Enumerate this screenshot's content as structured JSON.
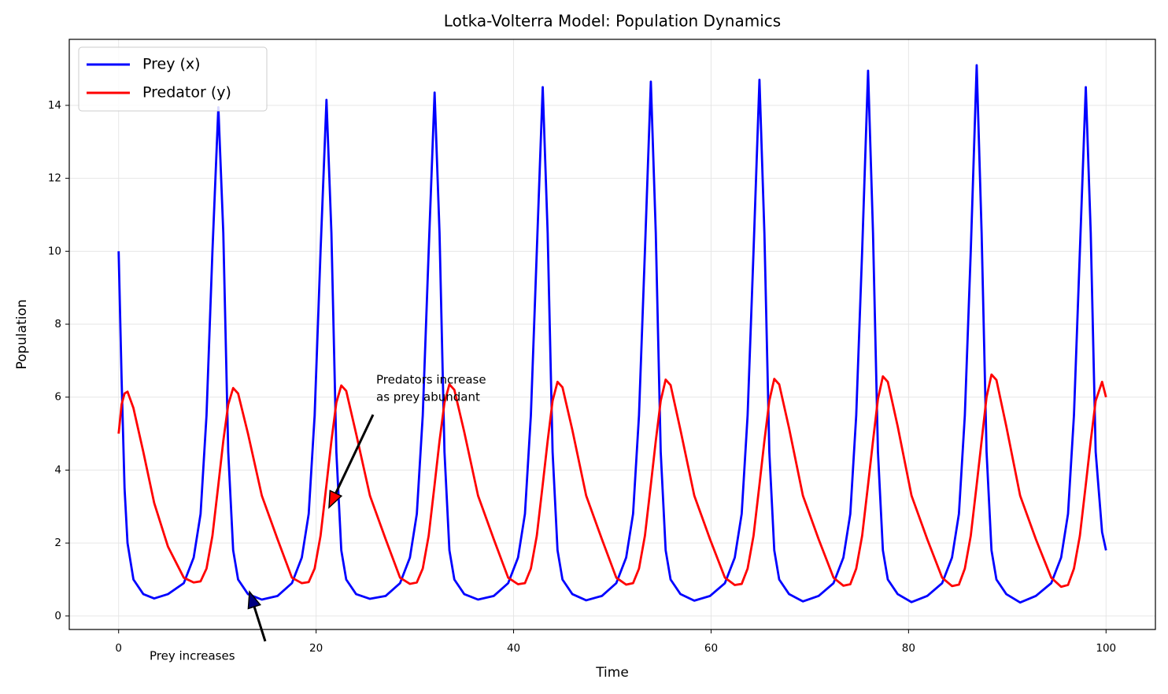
{
  "chart_data": {
    "type": "line",
    "title": "Lotka-Volterra Model: Population Dynamics",
    "x_label": "Time",
    "y_label": "Population",
    "x": [
      0,
      0.3,
      0.6,
      0.9,
      1.5,
      2.5,
      3.6,
      5,
      6.6,
      7.6,
      8.3,
      8.9,
      9.5,
      10.1,
      10.6,
      11.1,
      11.6,
      12.1,
      13.1,
      14.5,
      16.1,
      17.55,
      18.55,
      19.25,
      19.85,
      20.45,
      21.05,
      21.55,
      22.05,
      22.55,
      23.05,
      24.05,
      25.45,
      27.05,
      28.5,
      29.5,
      30.2,
      30.8,
      31.4,
      32.0,
      32.5,
      33.0,
      33.5,
      34.0,
      35.0,
      36.4,
      38.0,
      39.45,
      40.45,
      41.15,
      41.75,
      42.35,
      42.95,
      43.45,
      43.95,
      44.45,
      44.95,
      45.95,
      47.35,
      48.95,
      50.4,
      51.4,
      52.1,
      52.7,
      53.3,
      53.9,
      54.4,
      54.9,
      55.4,
      55.9,
      56.9,
      58.3,
      59.9,
      61.4,
      62.4,
      63.1,
      63.7,
      64.3,
      64.9,
      65.4,
      65.9,
      66.4,
      66.9,
      67.9,
      69.3,
      70.9,
      72.4,
      73.4,
      74.1,
      74.7,
      75.3,
      75.9,
      76.4,
      76.9,
      77.4,
      77.9,
      78.9,
      80.3,
      81.9,
      83.4,
      84.4,
      85.1,
      85.7,
      86.3,
      86.9,
      87.4,
      87.9,
      88.4,
      88.9,
      89.9,
      91.3,
      92.9,
      94.45,
      95.45,
      96.15,
      96.75,
      97.35,
      97.95,
      98.45,
      98.95,
      99.6,
      100
    ],
    "series": [
      {
        "name": "Prey (x)",
        "color": "#0000ff",
        "values": [
          10,
          6.5,
          3.5,
          2.0,
          1.0,
          0.6,
          0.48,
          0.6,
          0.9,
          1.6,
          2.8,
          5.5,
          10,
          13.95,
          10.5,
          4.5,
          1.8,
          1.0,
          0.6,
          0.45,
          0.55,
          0.9,
          1.6,
          2.8,
          5.5,
          10,
          14.15,
          10.5,
          4.5,
          1.8,
          1.0,
          0.6,
          0.47,
          0.55,
          0.9,
          1.6,
          2.8,
          5.5,
          10,
          14.35,
          10.5,
          4.5,
          1.8,
          1.0,
          0.6,
          0.45,
          0.55,
          0.9,
          1.6,
          2.8,
          5.5,
          10,
          14.5,
          10.5,
          4.5,
          1.8,
          1.0,
          0.6,
          0.43,
          0.55,
          0.9,
          1.6,
          2.8,
          5.5,
          10,
          14.65,
          10.5,
          4.5,
          1.8,
          1.0,
          0.6,
          0.42,
          0.55,
          0.9,
          1.6,
          2.8,
          5.5,
          10,
          14.7,
          10.5,
          4.5,
          1.8,
          1.0,
          0.6,
          0.4,
          0.55,
          0.9,
          1.6,
          2.8,
          5.5,
          10,
          14.95,
          10.5,
          4.5,
          1.8,
          1.0,
          0.6,
          0.38,
          0.55,
          0.9,
          1.6,
          2.8,
          5.5,
          10,
          15.1,
          10.5,
          4.5,
          1.8,
          1.0,
          0.6,
          0.37,
          0.55,
          0.9,
          1.6,
          2.8,
          5.5,
          10,
          14.5,
          10.5,
          4.5,
          2.3,
          1.8
        ]
      },
      {
        "name": "Predator (y)",
        "color": "#ff0000",
        "values": [
          5,
          5.8,
          6.1,
          6.15,
          5.7,
          4.5,
          3.1,
          1.9,
          1.05,
          0.92,
          0.95,
          1.3,
          2.2,
          3.6,
          4.8,
          5.8,
          6.25,
          6.1,
          5.0,
          3.3,
          2.1,
          1.05,
          0.9,
          0.93,
          1.3,
          2.2,
          3.6,
          4.8,
          5.85,
          6.32,
          6.17,
          5.0,
          3.3,
          2.1,
          1.05,
          0.88,
          0.92,
          1.3,
          2.2,
          3.6,
          4.8,
          5.85,
          6.35,
          6.2,
          5.05,
          3.3,
          2.1,
          1.05,
          0.87,
          0.9,
          1.3,
          2.2,
          3.6,
          4.8,
          5.9,
          6.42,
          6.27,
          5.1,
          3.3,
          2.1,
          1.05,
          0.86,
          0.9,
          1.3,
          2.2,
          3.6,
          4.8,
          5.9,
          6.48,
          6.33,
          5.1,
          3.3,
          2.1,
          1.05,
          0.85,
          0.88,
          1.3,
          2.2,
          3.6,
          4.8,
          5.9,
          6.5,
          6.35,
          5.15,
          3.3,
          2.1,
          1.05,
          0.83,
          0.87,
          1.3,
          2.2,
          3.6,
          4.8,
          5.95,
          6.57,
          6.42,
          5.2,
          3.3,
          2.1,
          1.05,
          0.82,
          0.86,
          1.3,
          2.2,
          3.6,
          4.8,
          6.0,
          6.62,
          6.47,
          5.2,
          3.3,
          2.1,
          1.05,
          0.8,
          0.85,
          1.3,
          2.2,
          3.6,
          4.8,
          5.9,
          6.42,
          6.0
        ]
      }
    ],
    "xlim": [
      -5,
      105
    ],
    "ylim": [
      -0.37,
      15.81
    ],
    "xticks": [
      0,
      20,
      40,
      60,
      80,
      100
    ],
    "yticks": [
      0,
      2,
      4,
      6,
      8,
      10,
      12,
      14
    ],
    "grid": true,
    "legend": "upper left",
    "annotations": [
      {
        "lines": [
          "Predators increase",
          "as prey abundant"
        ],
        "color": "#ff0000"
      },
      {
        "lines": [
          "Prey increases"
        ],
        "color": "#000080"
      }
    ]
  }
}
